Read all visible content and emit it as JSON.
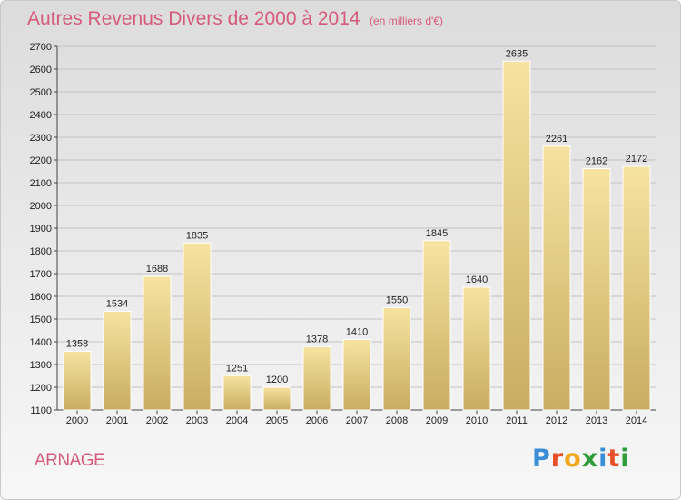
{
  "title": "Autres Revenus Divers de 2000 à 2014",
  "subtitle": "(en milliers d'€)",
  "location": "ARNAGE",
  "logo": {
    "text": "Proxiti",
    "letter_colors": [
      "#3a8fd6",
      "#e8502a",
      "#f2a81d",
      "#2f9e3a",
      "#3a8fd6",
      "#e8502a",
      "#2f9e3a"
    ]
  },
  "colors": {
    "title": "#d65a7c",
    "bar_light": "#f7e3a0",
    "bar_dark": "#c8ad62"
  },
  "chart_data": {
    "type": "bar",
    "categories": [
      "2000",
      "2001",
      "2002",
      "2003",
      "2004",
      "2005",
      "2006",
      "2007",
      "2008",
      "2009",
      "2010",
      "2011",
      "2012",
      "2013",
      "2014"
    ],
    "values": [
      1358,
      1534,
      1688,
      1835,
      1251,
      1200,
      1378,
      1410,
      1550,
      1845,
      1640,
      2635,
      2261,
      2162,
      2172
    ],
    "title": "Autres Revenus Divers de 2000 à 2014",
    "xlabel": "",
    "ylabel": "",
    "ylim": [
      1100,
      2700
    ],
    "yticks": [
      1100,
      1200,
      1300,
      1400,
      1500,
      1600,
      1700,
      1800,
      1900,
      2000,
      2100,
      2200,
      2300,
      2400,
      2500,
      2600,
      2700
    ],
    "grid": true,
    "legend": "none"
  }
}
